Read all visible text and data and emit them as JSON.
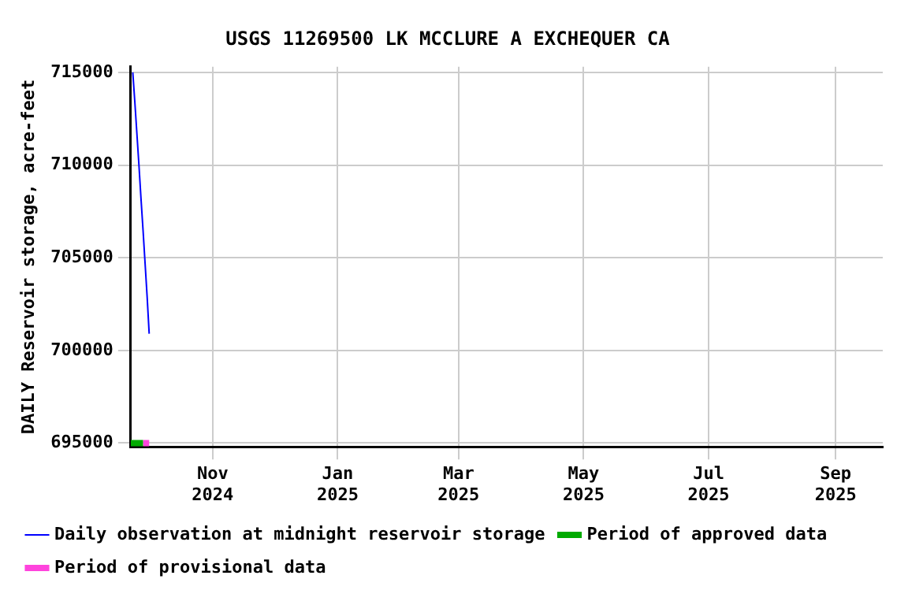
{
  "chart_data": {
    "type": "line",
    "title": "USGS 11269500 LK MCCLURE A EXCHEQUER CA",
    "ylabel": "DAILY Reservoir storage, acre-feet",
    "xlim": [
      "2024-09-22",
      "2025-09-24"
    ],
    "xticks": [
      {
        "value": "2024-11-01",
        "label": "Nov 2024"
      },
      {
        "value": "2025-01-01",
        "label": "Jan 2025"
      },
      {
        "value": "2025-03-01",
        "label": "Mar 2025"
      },
      {
        "value": "2025-05-01",
        "label": "May 2025"
      },
      {
        "value": "2025-07-01",
        "label": "Jul 2025"
      },
      {
        "value": "2025-09-01",
        "label": "Sep 2025"
      }
    ],
    "ylim": [
      694800,
      715300
    ],
    "yticks": [
      695000,
      700000,
      705000,
      710000,
      715000
    ],
    "series": [
      {
        "name": "Daily observation at midnight reservoir storage",
        "color": "#0000ff",
        "x": [
          "2024-09-23",
          "2024-09-24",
          "2024-09-25",
          "2024-09-26",
          "2024-09-27",
          "2024-09-28",
          "2024-09-29",
          "2024-09-30",
          "2024-10-01"
        ],
        "values": [
          715000,
          713400,
          711700,
          710000,
          708200,
          706500,
          704700,
          702900,
          700900
        ]
      },
      {
        "name": "Period of approved data",
        "color": "#00aa00",
        "x": [
          "2024-09-22",
          "2024-09-28"
        ],
        "values": [
          695000,
          695000
        ]
      },
      {
        "name": "Period of provisional data",
        "color": "#ff44dd",
        "x": [
          "2024-09-28",
          "2024-10-01"
        ],
        "values": [
          695000,
          695000
        ]
      }
    ],
    "grid": true,
    "legend": "bottom",
    "marker": "none",
    "line_style": "solid"
  }
}
